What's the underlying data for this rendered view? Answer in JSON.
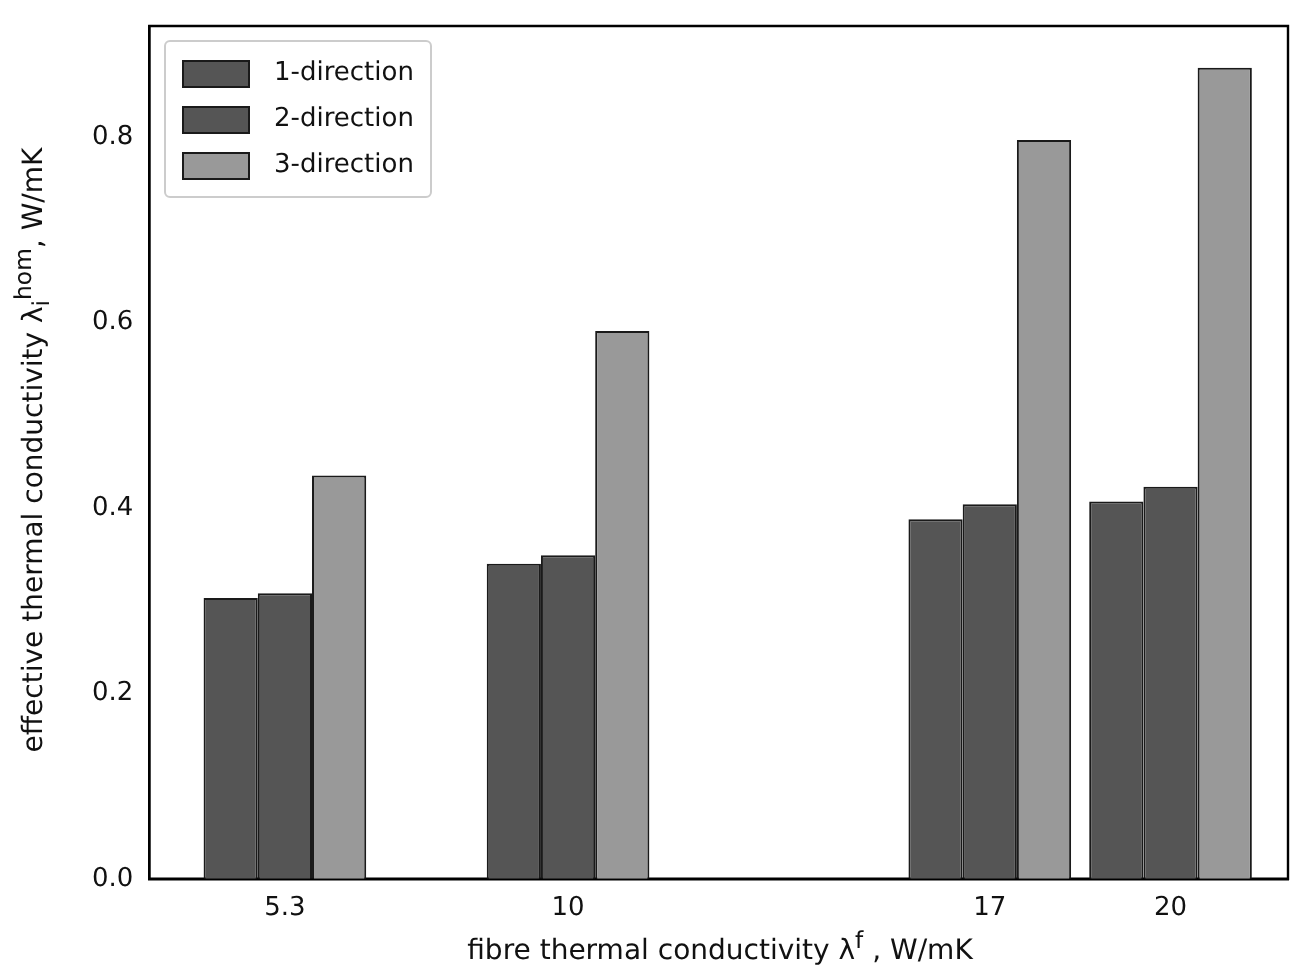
{
  "chart_data": {
    "type": "bar",
    "xlabel": "fibre thermal conductivity λ$^{f}$ , W/mK",
    "ylabel": "effective thermal conductivity λ$_{i}$$^{hom}$, W/mK",
    "x": [
      5.3,
      10,
      17,
      20
    ],
    "series": [
      {
        "name": "1-direction",
        "color": "#555555",
        "values": [
          0.303,
          0.34,
          0.388,
          0.407
        ]
      },
      {
        "name": "2-direction",
        "color": "#555555",
        "values": [
          0.308,
          0.349,
          0.404,
          0.423
        ]
      },
      {
        "name": "3-direction",
        "color": "#999999",
        "values": [
          0.435,
          0.591,
          0.797,
          0.875
        ]
      }
    ],
    "xlim": [
      3.05,
      21.95
    ],
    "xticks": [
      5.3,
      10,
      17,
      20
    ],
    "ylim": [
      0,
      0.92
    ],
    "yticks": [
      {
        "value": 0,
        "label": "0.0"
      },
      0.2,
      0.4,
      0.6,
      0.8
    ],
    "legend": "top left",
    "grid": false
  }
}
